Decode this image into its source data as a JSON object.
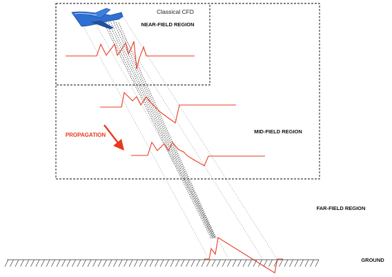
{
  "labels": {
    "classical_cfd": "Classical CFD",
    "near_field": "NEAR-FIELD REGION",
    "mid_field": "MID-FIELD REGION",
    "far_field": "FAR-FIELD REGION",
    "ground": "GROUND",
    "propagation": "PROPAGATION"
  },
  "colors": {
    "signature": "#e8391f",
    "region_border": "#000000",
    "ray": "#555555",
    "ground": "#333333",
    "aircraft": "#2f6fd0"
  },
  "icons": {
    "aircraft": "aircraft-icon",
    "propagation_arrow": "arrow-down-right-icon"
  }
}
